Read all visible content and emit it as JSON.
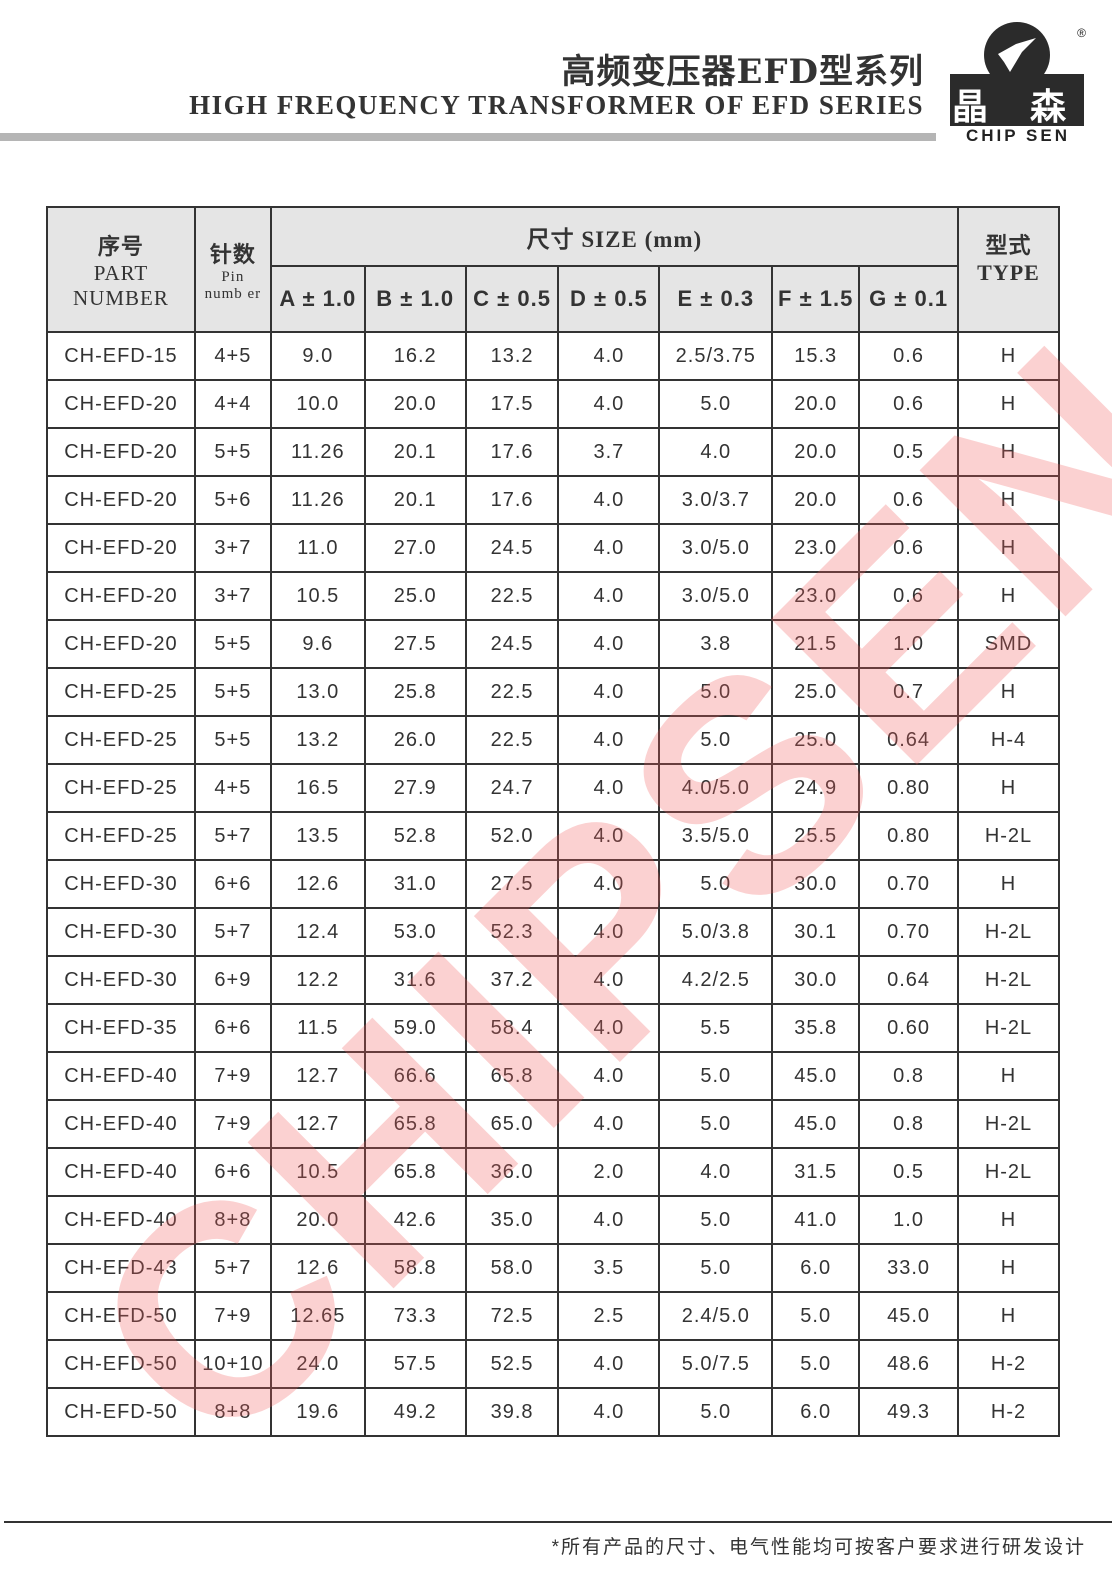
{
  "header": {
    "title_cn": "高频变压器EFD型系列",
    "title_en": "HIGH FREQUENCY TRANSFORMER OF EFD SERIES"
  },
  "logo": {
    "cn": "晶 森",
    "en": "CHIP SEN",
    "registered": "®"
  },
  "watermark": "CHIPSEN",
  "table": {
    "headers": {
      "part_cn": "序号",
      "part_en1": "PART",
      "part_en2": "NUMBER",
      "pin_cn": "针数",
      "pin_en1": "Pin",
      "pin_en2": "numb er",
      "size": "尺寸 SIZE (mm)",
      "type_cn": "型式",
      "type_en": "TYPE",
      "dims": [
        "A ± 1.0",
        "B ± 1.0",
        "C ± 0.5",
        "D ± 0.5",
        "E ± 0.3",
        "F ± 1.5",
        "G ± 0.1"
      ]
    },
    "rows": [
      [
        "CH-EFD-15",
        "4+5",
        "9.0",
        "16.2",
        "13.2",
        "4.0",
        "2.5/3.75",
        "15.3",
        "0.6",
        "H"
      ],
      [
        "CH-EFD-20",
        "4+4",
        "10.0",
        "20.0",
        "17.5",
        "4.0",
        "5.0",
        "20.0",
        "0.6",
        "H"
      ],
      [
        "CH-EFD-20",
        "5+5",
        "11.26",
        "20.1",
        "17.6",
        "3.7",
        "4.0",
        "20.0",
        "0.5",
        "H"
      ],
      [
        "CH-EFD-20",
        "5+6",
        "11.26",
        "20.1",
        "17.6",
        "4.0",
        "3.0/3.7",
        "20.0",
        "0.6",
        "H"
      ],
      [
        "CH-EFD-20",
        "3+7",
        "11.0",
        "27.0",
        "24.5",
        "4.0",
        "3.0/5.0",
        "23.0",
        "0.6",
        "H"
      ],
      [
        "CH-EFD-20",
        "3+7",
        "10.5",
        "25.0",
        "22.5",
        "4.0",
        "3.0/5.0",
        "23.0",
        "0.6",
        "H"
      ],
      [
        "CH-EFD-20",
        "5+5",
        "9.6",
        "27.5",
        "24.5",
        "4.0",
        "3.8",
        "21.5",
        "1.0",
        "SMD"
      ],
      [
        "CH-EFD-25",
        "5+5",
        "13.0",
        "25.8",
        "22.5",
        "4.0",
        "5.0",
        "25.0",
        "0.7",
        "H"
      ],
      [
        "CH-EFD-25",
        "5+5",
        "13.2",
        "26.0",
        "22.5",
        "4.0",
        "5.0",
        "25.0",
        "0.64",
        "H-4"
      ],
      [
        "CH-EFD-25",
        "4+5",
        "16.5",
        "27.9",
        "24.7",
        "4.0",
        "4.0/5.0",
        "24.9",
        "0.80",
        "H"
      ],
      [
        "CH-EFD-25",
        "5+7",
        "13.5",
        "52.8",
        "52.0",
        "4.0",
        "3.5/5.0",
        "25.5",
        "0.80",
        "H-2L"
      ],
      [
        "CH-EFD-30",
        "6+6",
        "12.6",
        "31.0",
        "27.5",
        "4.0",
        "5.0",
        "30.0",
        "0.70",
        "H"
      ],
      [
        "CH-EFD-30",
        "5+7",
        "12.4",
        "53.0",
        "52.3",
        "4.0",
        "5.0/3.8",
        "30.1",
        "0.70",
        "H-2L"
      ],
      [
        "CH-EFD-30",
        "6+9",
        "12.2",
        "31.6",
        "37.2",
        "4.0",
        "4.2/2.5",
        "30.0",
        "0.64",
        "H-2L"
      ],
      [
        "CH-EFD-35",
        "6+6",
        "11.5",
        "59.0",
        "58.4",
        "4.0",
        "5.5",
        "35.8",
        "0.60",
        "H-2L"
      ],
      [
        "CH-EFD-40",
        "7+9",
        "12.7",
        "66.6",
        "65.8",
        "4.0",
        "5.0",
        "45.0",
        "0.8",
        "H"
      ],
      [
        "CH-EFD-40",
        "7+9",
        "12.7",
        "65.8",
        "65.0",
        "4.0",
        "5.0",
        "45.0",
        "0.8",
        "H-2L"
      ],
      [
        "CH-EFD-40",
        "6+6",
        "10.5",
        "65.8",
        "36.0",
        "2.0",
        "4.0",
        "31.5",
        "0.5",
        "H-2L"
      ],
      [
        "CH-EFD-40",
        "8+8",
        "20.0",
        "42.6",
        "35.0",
        "4.0",
        "5.0",
        "41.0",
        "1.0",
        "H"
      ],
      [
        "CH-EFD-43",
        "5+7",
        "12.6",
        "58.8",
        "58.0",
        "3.5",
        "5.0",
        "6.0",
        "33.0",
        "H"
      ],
      [
        "CH-EFD-50",
        "7+9",
        "12.65",
        "73.3",
        "72.5",
        "2.5",
        "2.4/5.0",
        "5.0",
        "45.0",
        "H"
      ],
      [
        "CH-EFD-50",
        "10+10",
        "24.0",
        "57.5",
        "52.5",
        "4.0",
        "5.0/7.5",
        "5.0",
        "48.6",
        "H-2"
      ],
      [
        "CH-EFD-50",
        "8+8",
        "19.6",
        "49.2",
        "39.8",
        "4.0",
        "5.0",
        "6.0",
        "49.3",
        "H-2"
      ]
    ]
  },
  "footer": "*所有产品的尺寸、电气性能均可按客户要求进行研发设计"
}
